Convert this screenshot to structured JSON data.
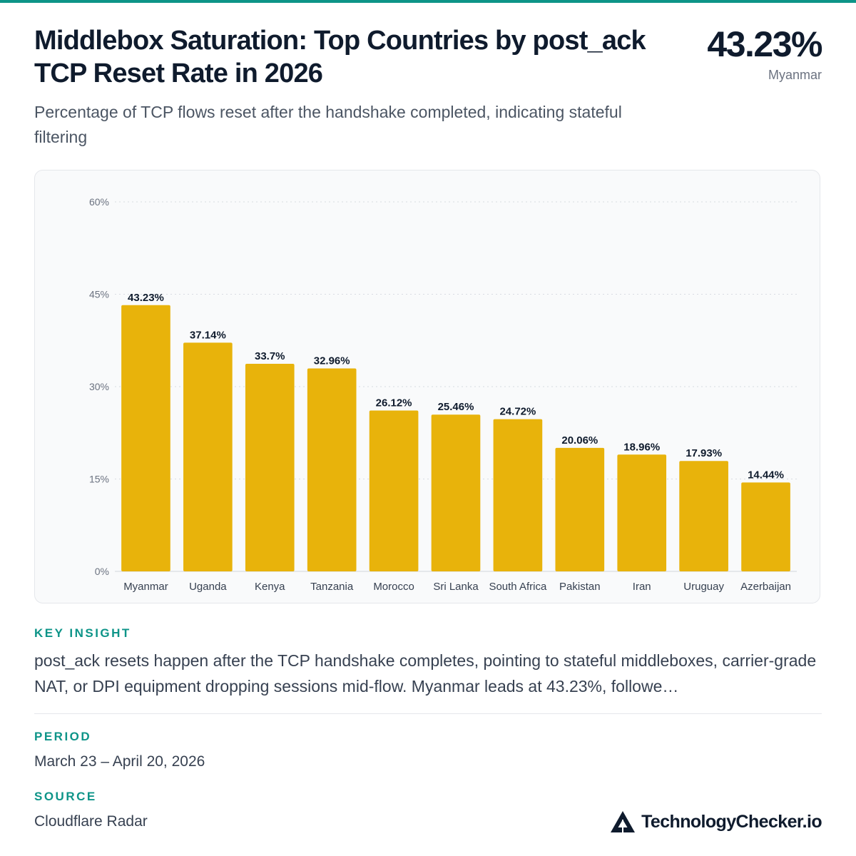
{
  "header": {
    "title": "Middlebox Saturation: Top Countries by post_ack TCP Reset Rate in 2026",
    "subtitle": "Percentage of TCP flows reset after the handshake completed, indicating stateful filtering",
    "kpi_value": "43.23%",
    "kpi_label": "Myanmar"
  },
  "chart_data": {
    "type": "bar",
    "title": "",
    "xlabel": "",
    "ylabel": "",
    "categories": [
      "Myanmar",
      "Uganda",
      "Kenya",
      "Tanzania",
      "Morocco",
      "Sri Lanka",
      "South Africa",
      "Pakistan",
      "Iran",
      "Uruguay",
      "Azerbaijan"
    ],
    "values": [
      43.23,
      37.14,
      33.7,
      32.96,
      26.12,
      25.46,
      24.72,
      20.06,
      18.96,
      17.93,
      14.44
    ],
    "value_labels": [
      "43.23%",
      "37.14%",
      "33.7%",
      "32.96%",
      "26.12%",
      "25.46%",
      "24.72%",
      "20.06%",
      "18.96%",
      "17.93%",
      "14.44%"
    ],
    "ylim": [
      0,
      60
    ],
    "yticks": [
      0,
      15,
      30,
      45,
      60
    ],
    "ytick_labels": [
      "0%",
      "15%",
      "30%",
      "45%",
      "60%"
    ],
    "grid": true,
    "bar_color": "#e8b30b"
  },
  "insight": {
    "label": "KEY INSIGHT",
    "text": "post_ack resets happen after the TCP handshake completes, pointing to stateful middleboxes, carrier-grade NAT, or DPI equipment dropping sessions mid-flow. Myanmar leads at 43.23%, followe…"
  },
  "period": {
    "label": "PERIOD",
    "value": "March 23 – April 20, 2026"
  },
  "source": {
    "label": "SOURCE",
    "value": "Cloudflare Radar"
  },
  "brand": {
    "name": "TechnologyChecker.io",
    "icon": "triangle-logo-icon"
  },
  "colors": {
    "accent": "#0d9488",
    "bar": "#e8b30b",
    "text": "#0f1b2d"
  }
}
